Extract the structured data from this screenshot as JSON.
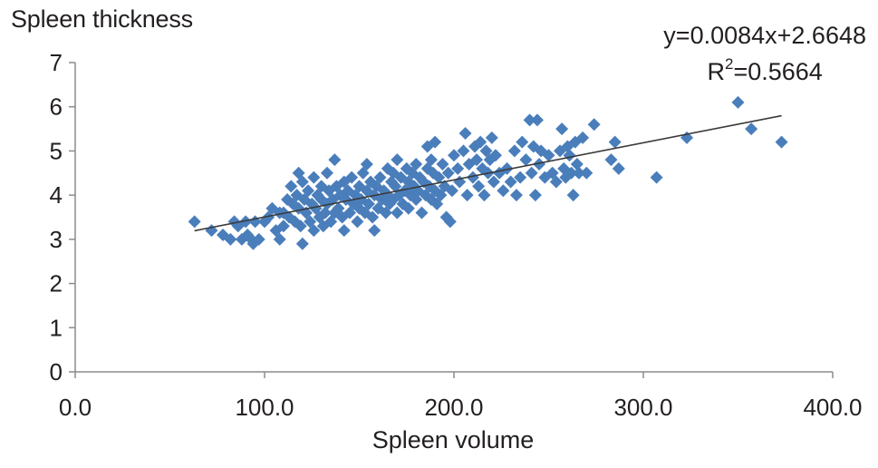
{
  "chart_data": {
    "type": "scatter",
    "ylabel": "Spleen thickness",
    "xlabel": "Spleen volume",
    "xlim": [
      0,
      400
    ],
    "ylim": [
      0,
      7
    ],
    "x_ticks": [
      "0.0",
      "100.0",
      "200.0",
      "300.0",
      "400.0"
    ],
    "y_ticks": [
      "0",
      "1",
      "2",
      "3",
      "4",
      "5",
      "6",
      "7"
    ],
    "grid": false,
    "marker": "diamond",
    "marker_color": "#4a7ebb",
    "trendline": {
      "type": "linear",
      "slope": 0.0084,
      "intercept": 2.6648,
      "x_range": [
        63,
        373
      ],
      "color": "#3a3a3a",
      "equation_label": "y=0.0084x+2.6648",
      "r2_prefix": "R",
      "r2_sup": "2",
      "r2_value": "=0.5664"
    },
    "points": [
      [
        63,
        3.4
      ],
      [
        72,
        3.2
      ],
      [
        78,
        3.1
      ],
      [
        82,
        3.0
      ],
      [
        84,
        3.4
      ],
      [
        86,
        3.3
      ],
      [
        88,
        3.0
      ],
      [
        90,
        3.4
      ],
      [
        91,
        3.1
      ],
      [
        93,
        3.0
      ],
      [
        94,
        2.9
      ],
      [
        95,
        3.4
      ],
      [
        97,
        3.0
      ],
      [
        100,
        3.4
      ],
      [
        102,
        3.5
      ],
      [
        104,
        3.7
      ],
      [
        106,
        3.2
      ],
      [
        108,
        3.6
      ],
      [
        108,
        3.0
      ],
      [
        110,
        3.3
      ],
      [
        110,
        3.6
      ],
      [
        112,
        3.9
      ],
      [
        113,
        3.5
      ],
      [
        114,
        4.2
      ],
      [
        115,
        3.8
      ],
      [
        116,
        3.4
      ],
      [
        117,
        4.0
      ],
      [
        118,
        4.5
      ],
      [
        118,
        3.7
      ],
      [
        119,
        3.3
      ],
      [
        120,
        4.3
      ],
      [
        120,
        2.9
      ],
      [
        121,
        3.9
      ],
      [
        122,
        3.6
      ],
      [
        123,
        4.1
      ],
      [
        124,
        3.4
      ],
      [
        125,
        3.8
      ],
      [
        126,
        4.4
      ],
      [
        126,
        3.2
      ],
      [
        127,
        3.7
      ],
      [
        128,
        4.0
      ],
      [
        129,
        3.5
      ],
      [
        130,
        3.9
      ],
      [
        130,
        4.2
      ],
      [
        131,
        3.3
      ],
      [
        132,
        3.6
      ],
      [
        133,
        4.5
      ],
      [
        133,
        3.8
      ],
      [
        134,
        4.1
      ],
      [
        135,
        3.4
      ],
      [
        136,
        3.9
      ],
      [
        137,
        4.8
      ],
      [
        137,
        3.6
      ],
      [
        138,
        4.2
      ],
      [
        139,
        3.7
      ],
      [
        140,
        4.0
      ],
      [
        141,
        3.5
      ],
      [
        142,
        4.3
      ],
      [
        142,
        3.2
      ],
      [
        143,
        3.9
      ],
      [
        144,
        4.1
      ],
      [
        145,
        3.6
      ],
      [
        146,
        4.4
      ],
      [
        147,
        3.8
      ],
      [
        148,
        4.0
      ],
      [
        149,
        3.4
      ],
      [
        150,
        4.2
      ],
      [
        150,
        3.7
      ],
      [
        151,
        3.9
      ],
      [
        152,
        4.5
      ],
      [
        153,
        3.6
      ],
      [
        154,
        4.1
      ],
      [
        154,
        4.7
      ],
      [
        155,
        3.8
      ],
      [
        156,
        4.3
      ],
      [
        157,
        3.5
      ],
      [
        158,
        4.0
      ],
      [
        158,
        3.2
      ],
      [
        159,
        4.2
      ],
      [
        160,
        3.7
      ],
      [
        161,
        4.4
      ],
      [
        162,
        3.9
      ],
      [
        163,
        4.1
      ],
      [
        164,
        3.6
      ],
      [
        165,
        4.6
      ],
      [
        165,
        4.0
      ],
      [
        166,
        3.8
      ],
      [
        167,
        4.3
      ],
      [
        168,
        4.5
      ],
      [
        168,
        3.9
      ],
      [
        169,
        4.2
      ],
      [
        170,
        4.8
      ],
      [
        170,
        3.6
      ],
      [
        171,
        4.0
      ],
      [
        172,
        4.4
      ],
      [
        173,
        3.8
      ],
      [
        174,
        4.1
      ],
      [
        175,
        4.6
      ],
      [
        176,
        4.3
      ],
      [
        176,
        3.7
      ],
      [
        177,
        4.0
      ],
      [
        178,
        4.5
      ],
      [
        179,
        4.2
      ],
      [
        180,
        3.9
      ],
      [
        180,
        4.7
      ],
      [
        181,
        4.1
      ],
      [
        182,
        4.4
      ],
      [
        183,
        3.6
      ],
      [
        184,
        4.3
      ],
      [
        185,
        4.0
      ],
      [
        186,
        4.6
      ],
      [
        186,
        5.1
      ],
      [
        187,
        4.2
      ],
      [
        188,
        3.9
      ],
      [
        188,
        4.8
      ],
      [
        189,
        4.5
      ],
      [
        190,
        5.2
      ],
      [
        190,
        4.1
      ],
      [
        191,
        3.8
      ],
      [
        192,
        4.4
      ],
      [
        193,
        4.0
      ],
      [
        194,
        4.7
      ],
      [
        195,
        4.2
      ],
      [
        196,
        3.5
      ],
      [
        197,
        4.5
      ],
      [
        198,
        3.4
      ],
      [
        199,
        4.1
      ],
      [
        200,
        4.9
      ],
      [
        202,
        4.6
      ],
      [
        203,
        4.3
      ],
      [
        205,
        5.0
      ],
      [
        206,
        5.4
      ],
      [
        207,
        4.0
      ],
      [
        208,
        4.7
      ],
      [
        210,
        4.4
      ],
      [
        211,
        5.1
      ],
      [
        212,
        4.8
      ],
      [
        213,
        4.2
      ],
      [
        214,
        5.2
      ],
      [
        215,
        4.6
      ],
      [
        216,
        4.0
      ],
      [
        217,
        5.0
      ],
      [
        218,
        4.5
      ],
      [
        219,
        4.8
      ],
      [
        220,
        5.3
      ],
      [
        221,
        4.3
      ],
      [
        222,
        4.9
      ],
      [
        224,
        4.5
      ],
      [
        226,
        4.1
      ],
      [
        228,
        4.6
      ],
      [
        230,
        4.3
      ],
      [
        232,
        5.0
      ],
      [
        233,
        4.0
      ],
      [
        235,
        4.4
      ],
      [
        236,
        5.2
      ],
      [
        238,
        4.8
      ],
      [
        240,
        5.7
      ],
      [
        241,
        4.5
      ],
      [
        242,
        5.1
      ],
      [
        243,
        4.0
      ],
      [
        244,
        5.7
      ],
      [
        245,
        4.7
      ],
      [
        246,
        5.0
      ],
      [
        248,
        4.4
      ],
      [
        250,
        4.9
      ],
      [
        252,
        4.5
      ],
      [
        254,
        4.3
      ],
      [
        256,
        5.0
      ],
      [
        257,
        5.5
      ],
      [
        258,
        4.6
      ],
      [
        259,
        4.4
      ],
      [
        260,
        5.1
      ],
      [
        261,
        4.9
      ],
      [
        262,
        4.5
      ],
      [
        263,
        4.0
      ],
      [
        264,
        5.2
      ],
      [
        265,
        4.7
      ],
      [
        266,
        4.5
      ],
      [
        268,
        5.3
      ],
      [
        270,
        4.5
      ],
      [
        274,
        5.6
      ],
      [
        283,
        4.8
      ],
      [
        285,
        5.2
      ],
      [
        287,
        4.6
      ],
      [
        307,
        4.4
      ],
      [
        323,
        5.3
      ],
      [
        350,
        6.1
      ],
      [
        357,
        5.5
      ],
      [
        373,
        5.2
      ]
    ]
  }
}
